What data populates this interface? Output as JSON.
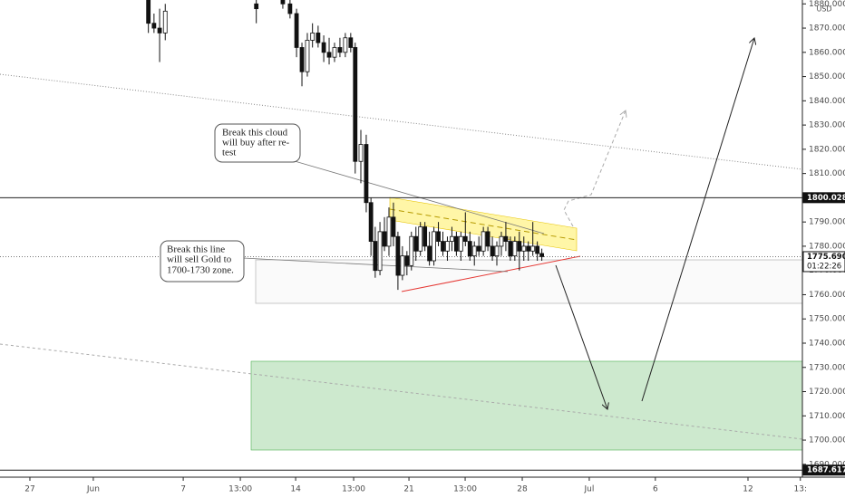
{
  "chart_data": {
    "type": "candlestick",
    "currency": "USD",
    "xlim": [
      0,
      35.69
    ],
    "ylim": [
      1684.7,
      1881.6
    ],
    "grid": false,
    "xticks": [
      {
        "value": 1.33,
        "label": "27"
      },
      {
        "value": 4.15,
        "label": "Jun"
      },
      {
        "value": 8.15,
        "label": "7"
      },
      {
        "value": 10.69,
        "label": "13:00"
      },
      {
        "value": 13.15,
        "label": "14"
      },
      {
        "value": 15.73,
        "label": "13:00"
      },
      {
        "value": 18.19,
        "label": "21"
      },
      {
        "value": 20.69,
        "label": "13:00"
      },
      {
        "value": 23.23,
        "label": "28"
      },
      {
        "value": 26.21,
        "label": "Jul"
      },
      {
        "value": 29.15,
        "label": "6"
      },
      {
        "value": 33.27,
        "label": "12"
      },
      {
        "value": 35.6,
        "label": "13:"
      }
    ],
    "yticks": [
      {
        "value": 1690,
        "label": "1690.000"
      },
      {
        "value": 1700,
        "label": "1700.000"
      },
      {
        "value": 1710,
        "label": "1710.000"
      },
      {
        "value": 1720,
        "label": "1720.000"
      },
      {
        "value": 1730,
        "label": "1730.000"
      },
      {
        "value": 1740,
        "label": "1740.000"
      },
      {
        "value": 1750,
        "label": "1750.000"
      },
      {
        "value": 1760,
        "label": "1760.000"
      },
      {
        "value": 1770,
        "label": "1770.000"
      },
      {
        "value": 1780,
        "label": "1780.000"
      },
      {
        "value": 1790,
        "label": "1790.000"
      },
      {
        "value": 1800,
        "label": "1800.000"
      },
      {
        "value": 1810,
        "label": "1810.000"
      },
      {
        "value": 1820,
        "label": "1820.000"
      },
      {
        "value": 1830,
        "label": "1830.000"
      },
      {
        "value": 1840,
        "label": "1840.000"
      },
      {
        "value": 1850,
        "label": "1850.000"
      },
      {
        "value": 1860,
        "label": "1860.000"
      },
      {
        "value": 1870,
        "label": "1870.000"
      },
      {
        "value": 1880,
        "label": "1880.000"
      }
    ],
    "price_lines": [
      {
        "value": 1800.028,
        "style": "solid"
      },
      {
        "value": {
          "value": 1775.69,
          "label": "1775.690"
        },
        "countdown": "01:22:26",
        "style": "dotted"
      },
      {
        "value": 1687.617,
        "style": "solid"
      }
    ],
    "candles": {
      "x": [
        6.6,
        6.85,
        7.1,
        7.35,
        11.4,
        12.58,
        12.9,
        13.19,
        13.43,
        13.67,
        13.9,
        14.15,
        14.4,
        14.64,
        14.88,
        15.12,
        15.36,
        15.6,
        15.8,
        16.05,
        16.29,
        16.5,
        16.69,
        16.9,
        17.1,
        17.3,
        17.5,
        17.7,
        17.9,
        18.1,
        18.3,
        18.5,
        18.7,
        18.9,
        19.1,
        19.3,
        19.5,
        19.7,
        19.9,
        20.1,
        20.3,
        20.5,
        20.7,
        20.9,
        21.1,
        21.3,
        21.5,
        21.7,
        21.9,
        22.1,
        22.3,
        22.5,
        22.7,
        22.9,
        23.1,
        23.3,
        23.5,
        23.7,
        23.9,
        24.1
      ],
      "open": [
        1882,
        1872,
        1870,
        1868,
        1880,
        1885,
        1880,
        1876,
        1862,
        1852,
        1865,
        1868,
        1864,
        1860,
        1858,
        1862,
        1860,
        1866,
        1862,
        1815,
        1822,
        1798,
        1782,
        1770,
        1786,
        1780,
        1792,
        1784,
        1768,
        1776,
        1772,
        1784,
        1778,
        1788,
        1780,
        1774,
        1786,
        1782,
        1778,
        1782,
        1784,
        1778,
        1784,
        1782,
        1776,
        1780,
        1778,
        1786,
        1780,
        1776,
        1780,
        1784,
        1782,
        1776,
        1782,
        1778,
        1780,
        1778,
        1780,
        1777
      ],
      "high": [
        1885,
        1876,
        1878,
        1880,
        1885,
        1886,
        1882,
        1878,
        1864,
        1868,
        1872,
        1871,
        1867,
        1866,
        1864,
        1866,
        1868,
        1868,
        1864,
        1828,
        1826,
        1800,
        1788,
        1790,
        1792,
        1796,
        1798,
        1786,
        1780,
        1778,
        1786,
        1788,
        1790,
        1790,
        1786,
        1788,
        1790,
        1786,
        1784,
        1788,
        1786,
        1786,
        1794,
        1786,
        1782,
        1784,
        1788,
        1788,
        1784,
        1782,
        1786,
        1790,
        1784,
        1784,
        1786,
        1784,
        1782,
        1790,
        1782,
        1779
      ],
      "low": [
        1868,
        1868,
        1856,
        1865,
        1872,
        1878,
        1874,
        1858,
        1846,
        1850,
        1862,
        1862,
        1856,
        1855,
        1856,
        1858,
        1858,
        1860,
        1810,
        1806,
        1794,
        1776,
        1767,
        1768,
        1778,
        1776,
        1780,
        1762,
        1766,
        1768,
        1770,
        1774,
        1776,
        1778,
        1772,
        1772,
        1780,
        1776,
        1774,
        1778,
        1776,
        1774,
        1780,
        1774,
        1772,
        1776,
        1776,
        1778,
        1774,
        1772,
        1776,
        1778,
        1774,
        1774,
        1770,
        1774,
        1774,
        1776,
        1774,
        1774
      ],
      "close": [
        1872,
        1870,
        1868,
        1877,
        1878,
        1880,
        1876,
        1862,
        1852,
        1865,
        1868,
        1864,
        1860,
        1858,
        1862,
        1860,
        1866,
        1862,
        1815,
        1822,
        1798,
        1782,
        1770,
        1786,
        1780,
        1792,
        1784,
        1768,
        1776,
        1772,
        1784,
        1778,
        1788,
        1780,
        1774,
        1786,
        1782,
        1778,
        1782,
        1784,
        1778,
        1784,
        1782,
        1776,
        1780,
        1778,
        1786,
        1780,
        1776,
        1780,
        1784,
        1782,
        1776,
        1782,
        1778,
        1780,
        1778,
        1780,
        1777,
        1775.69
      ]
    },
    "annotations": [
      {
        "lines": [
          "Break this cloud",
          "will buy after re-",
          "test"
        ]
      },
      {
        "lines": [
          "Break this line",
          "will sell Gold to",
          "1700-1730 zone."
        ]
      }
    ]
  }
}
